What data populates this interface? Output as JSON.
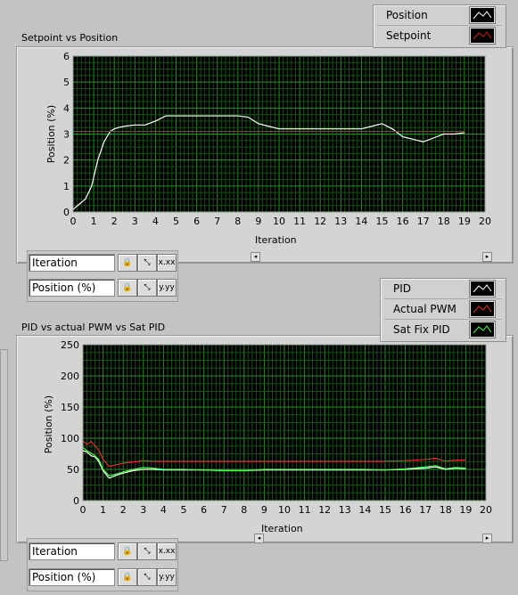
{
  "chart_data": [
    {
      "type": "line",
      "title": "Setpoint vs Position",
      "xlabel": "Iteration",
      "ylabel": "Position (%)",
      "xlim": [
        0,
        20
      ],
      "ylim": [
        0,
        6
      ],
      "x_ticks": [
        "0",
        "1",
        "2",
        "3",
        "4",
        "5",
        "6",
        "7",
        "8",
        "9",
        "10",
        "11",
        "12",
        "13",
        "14",
        "15",
        "16",
        "17",
        "18",
        "19",
        "20"
      ],
      "y_ticks": [
        "0",
        "1",
        "2",
        "3",
        "4",
        "5",
        "6"
      ],
      "grid": true,
      "legend_position": "top-right",
      "series": [
        {
          "name": "Position",
          "color": "#ffffff",
          "x": [
            0,
            0.3,
            0.6,
            0.9,
            1.2,
            1.5,
            1.8,
            2.0,
            2.2,
            2.5,
            3.0,
            3.5,
            4.0,
            4.5,
            5.0,
            6.0,
            7.0,
            8.0,
            8.5,
            9.0,
            9.5,
            10.0,
            10.5,
            11.0,
            12.0,
            13.0,
            14.0,
            14.5,
            15.0,
            15.5,
            16.0,
            16.5,
            17.0,
            17.5,
            18.0,
            18.5,
            19.0
          ],
          "y": [
            0.1,
            0.3,
            0.5,
            1.0,
            2.0,
            2.7,
            3.1,
            3.2,
            3.25,
            3.3,
            3.35,
            3.35,
            3.5,
            3.7,
            3.7,
            3.7,
            3.7,
            3.7,
            3.65,
            3.4,
            3.3,
            3.2,
            3.2,
            3.2,
            3.2,
            3.2,
            3.2,
            3.3,
            3.4,
            3.2,
            2.9,
            2.8,
            2.7,
            2.85,
            3.0,
            3.0,
            3.05
          ]
        },
        {
          "name": "Setpoint",
          "color": "#d02020",
          "x": [
            0,
            19
          ],
          "y": [
            3.1,
            3.1
          ]
        }
      ]
    },
    {
      "type": "line",
      "title": "PID  vs actual PWM vs Sat PID",
      "xlabel": "Iteration",
      "ylabel": "Position (%)",
      "xlim": [
        0,
        20
      ],
      "ylim": [
        0,
        250
      ],
      "x_ticks": [
        "0",
        "1",
        "2",
        "3",
        "4",
        "5",
        "6",
        "7",
        "8",
        "9",
        "10",
        "11",
        "12",
        "13",
        "14",
        "15",
        "16",
        "17",
        "18",
        "19",
        "20"
      ],
      "y_ticks": [
        "0",
        "50",
        "100",
        "150",
        "200",
        "250"
      ],
      "grid": true,
      "legend_position": "top-right",
      "series": [
        {
          "name": "PID",
          "color": "#ffffff",
          "x": [
            0,
            0.2,
            0.4,
            0.6,
            0.8,
            1.0,
            1.3,
            1.6,
            2.0,
            2.5,
            3.0,
            3.5,
            4.0,
            5.0,
            6.0,
            7.0,
            8.0,
            9.0,
            10.0,
            11.0,
            12.0,
            13.0,
            14.0,
            15.0,
            16.0,
            17.0,
            17.5,
            18.0,
            18.5,
            19.0
          ],
          "y": [
            80,
            78,
            72,
            70,
            62,
            48,
            36,
            40,
            44,
            48,
            50,
            50,
            49,
            49,
            49,
            48,
            48,
            49,
            49,
            49,
            49,
            49,
            49,
            49,
            50,
            52,
            54,
            50,
            52,
            51
          ]
        },
        {
          "name": "Actual PWM",
          "color": "#e03030",
          "x": [
            0,
            0.2,
            0.4,
            0.6,
            0.8,
            1.0,
            1.3,
            1.6,
            2.0,
            2.5,
            3.0,
            3.5,
            4.0,
            5.0,
            6.0,
            7.0,
            8.0,
            9.0,
            10.0,
            11.0,
            12.0,
            13.0,
            14.0,
            15.0,
            16.0,
            17.0,
            17.5,
            18.0,
            18.5,
            19.0
          ],
          "y": [
            96,
            90,
            95,
            88,
            80,
            66,
            55,
            57,
            60,
            62,
            64,
            63,
            63,
            63,
            63,
            63,
            63,
            63,
            63,
            63,
            63,
            63,
            63,
            63,
            64,
            66,
            68,
            63,
            65,
            65
          ]
        },
        {
          "name": "Sat Fix PID",
          "color": "#40ff40",
          "x": [
            0,
            0.2,
            0.4,
            0.6,
            0.8,
            1.0,
            1.3,
            1.6,
            2.0,
            2.5,
            3.0,
            3.5,
            4.0,
            5.0,
            6.0,
            7.0,
            8.0,
            9.0,
            10.0,
            11.0,
            12.0,
            13.0,
            14.0,
            15.0,
            16.0,
            17.0,
            17.5,
            18.0,
            18.5,
            19.0
          ],
          "y": [
            85,
            80,
            76,
            72,
            65,
            50,
            40,
            42,
            46,
            50,
            53,
            52,
            50,
            50,
            49,
            48,
            48,
            50,
            50,
            50,
            50,
            50,
            50,
            49,
            51,
            54,
            56,
            51,
            53,
            52
          ]
        }
      ]
    }
  ],
  "scale_controls": [
    {
      "x_name": "Iteration",
      "y_name": "Position (%)",
      "x_fmt": "x.xx",
      "y_fmt": "y.yy"
    },
    {
      "x_name": "Iteration",
      "y_name": "Position (%)",
      "x_fmt": "x.xx",
      "y_fmt": "y.yy"
    }
  ]
}
